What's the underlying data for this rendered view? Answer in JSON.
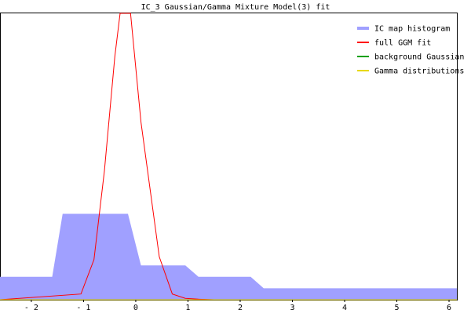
{
  "chart_data": {
    "type": "line",
    "title": "IC_3 Gaussian/Gamma Mixture Model(3) fit",
    "xlabel": "",
    "ylabel": "",
    "xlim": [
      -2.6,
      6.15
    ],
    "ylim": [
      0,
      1.0
    ],
    "x_ticks": [
      -2,
      -1,
      0,
      1,
      2,
      3,
      4,
      5,
      6
    ],
    "x_tick_labels": [
      "- 2",
      "- 1",
      "0",
      "1",
      "2",
      "3",
      "4",
      "5",
      "6"
    ],
    "grid": false,
    "legend_position": "top-right",
    "series": [
      {
        "name": "IC map histogram",
        "kind": "area",
        "color": "#a0a0ff",
        "x": [
          -2.6,
          -1.6,
          -1.4,
          -1.15,
          -0.15,
          0.1,
          0.95,
          1.2,
          2.2,
          2.45,
          6.15
        ],
        "y": [
          0.08,
          0.08,
          0.3,
          0.3,
          0.3,
          0.12,
          0.12,
          0.08,
          0.08,
          0.04,
          0.04
        ]
      },
      {
        "name": "full GGM fit",
        "kind": "line",
        "color": "#ff0000",
        "x": [
          -2.6,
          -1.05,
          -0.8,
          -0.6,
          -0.4,
          -0.3,
          -0.1,
          0.1,
          0.45,
          0.7,
          0.95,
          1.2,
          1.5,
          6.15
        ],
        "y": [
          0.0,
          0.02,
          0.14,
          0.45,
          0.85,
          1.0,
          1.0,
          0.62,
          0.15,
          0.02,
          0.005,
          0.002,
          0.0,
          0.0
        ]
      },
      {
        "name": "background Gaussian",
        "kind": "line",
        "color": "#00a000",
        "x": [
          -2.6,
          6.15
        ],
        "y": [
          0.0,
          0.0
        ]
      },
      {
        "name": "Gamma distributions",
        "kind": "line",
        "color": "#e8d800",
        "x": [
          -2.6,
          6.15
        ],
        "y": [
          0.0,
          0.0
        ]
      }
    ]
  }
}
